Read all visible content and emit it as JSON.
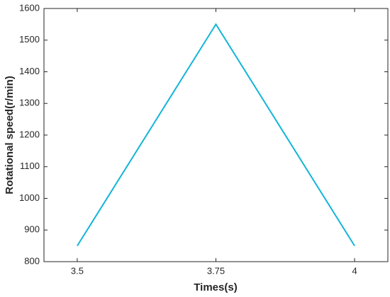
{
  "chart_data": {
    "type": "line",
    "x_label": "Times(s)",
    "y_label": "Rotational speed(r/min)",
    "x": [
      3.5,
      3.75,
      4
    ],
    "series": [
      {
        "color": "#12b4d8",
        "values": [
          850,
          1550,
          850
        ]
      }
    ],
    "xlim": [
      3.44,
      4.06
    ],
    "xticks": [
      3.5,
      3.75,
      4
    ],
    "ylim": [
      800,
      1600
    ],
    "yticks": [
      800,
      900,
      1000,
      1100,
      1200,
      1300,
      1400,
      1500,
      1600
    ]
  }
}
